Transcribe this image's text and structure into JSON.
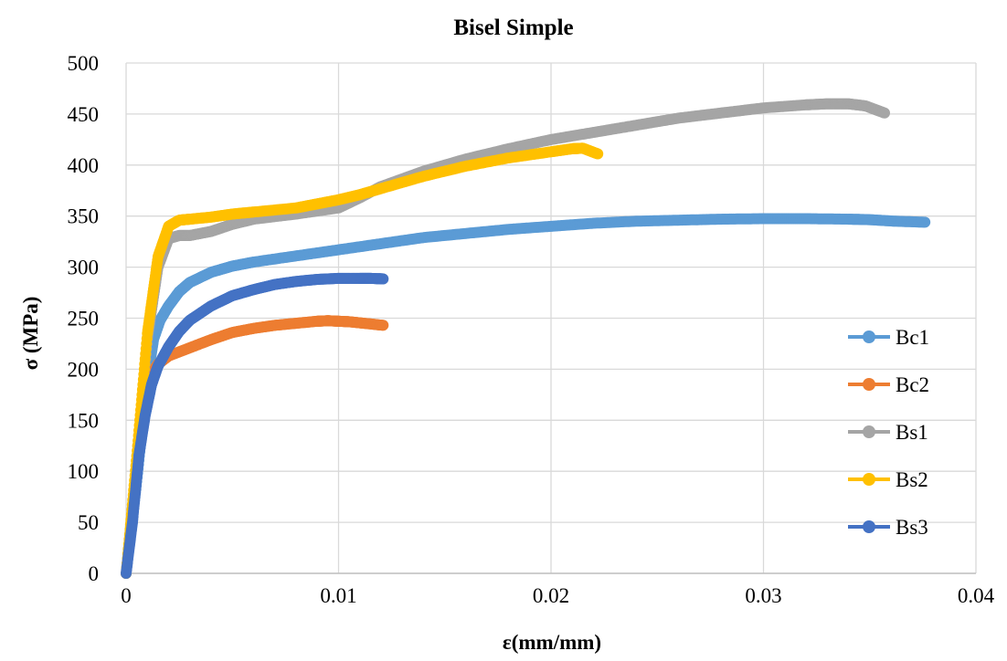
{
  "chart_data": {
    "type": "scatter",
    "title": "Bisel Simple",
    "xlabel": "ε(mm/mm)",
    "ylabel": "σ (MPa)",
    "xlim": [
      0,
      0.04
    ],
    "ylim": [
      0,
      500
    ],
    "x_ticks": [
      0,
      0.01,
      0.02,
      0.03,
      0.04
    ],
    "x_tick_labels": [
      "0",
      "0.01",
      "0.02",
      "0.03",
      "0.04"
    ],
    "y_ticks": [
      0,
      50,
      100,
      150,
      200,
      250,
      300,
      350,
      400,
      450,
      500
    ],
    "y_tick_labels": [
      "0",
      "50",
      "100",
      "150",
      "200",
      "250",
      "300",
      "350",
      "400",
      "450",
      "500"
    ],
    "grid": true,
    "legend_position": "right",
    "series": [
      {
        "name": "Bc1",
        "color": "#5B9BD5",
        "points": [
          [
            0,
            0
          ],
          [
            0.0005,
            90
          ],
          [
            0.001,
            190
          ],
          [
            0.0013,
            230
          ],
          [
            0.0016,
            248
          ],
          [
            0.002,
            262
          ],
          [
            0.0025,
            276
          ],
          [
            0.003,
            285
          ],
          [
            0.004,
            295
          ],
          [
            0.005,
            301
          ],
          [
            0.006,
            305
          ],
          [
            0.008,
            311
          ],
          [
            0.01,
            317
          ],
          [
            0.012,
            323
          ],
          [
            0.014,
            329
          ],
          [
            0.016,
            333
          ],
          [
            0.018,
            337
          ],
          [
            0.02,
            340
          ],
          [
            0.022,
            343
          ],
          [
            0.024,
            345
          ],
          [
            0.026,
            346
          ],
          [
            0.028,
            347
          ],
          [
            0.03,
            347.5
          ],
          [
            0.032,
            347.5
          ],
          [
            0.034,
            347
          ],
          [
            0.035,
            346.5
          ],
          [
            0.0362,
            345
          ],
          [
            0.0376,
            344
          ]
        ]
      },
      {
        "name": "Bc2",
        "color": "#ED7D31",
        "points": [
          [
            0,
            0
          ],
          [
            0.0004,
            80
          ],
          [
            0.0008,
            160
          ],
          [
            0.001,
            190
          ],
          [
            0.0015,
            205
          ],
          [
            0.002,
            213
          ],
          [
            0.003,
            221
          ],
          [
            0.004,
            229
          ],
          [
            0.005,
            236
          ],
          [
            0.006,
            240
          ],
          [
            0.007,
            243
          ],
          [
            0.008,
            245
          ],
          [
            0.009,
            247
          ],
          [
            0.0095,
            247.5
          ],
          [
            0.01,
            247
          ],
          [
            0.0105,
            246.5
          ],
          [
            0.0112,
            245
          ],
          [
            0.0121,
            243
          ]
        ]
      },
      {
        "name": "Bs1",
        "color": "#A5A5A5",
        "points": [
          [
            0,
            0
          ],
          [
            0.0005,
            110
          ],
          [
            0.001,
            230
          ],
          [
            0.0015,
            300
          ],
          [
            0.002,
            328
          ],
          [
            0.0025,
            331
          ],
          [
            0.003,
            331
          ],
          [
            0.004,
            335
          ],
          [
            0.005,
            342
          ],
          [
            0.006,
            347
          ],
          [
            0.008,
            352
          ],
          [
            0.01,
            358
          ],
          [
            0.011,
            368
          ],
          [
            0.012,
            379
          ],
          [
            0.014,
            394
          ],
          [
            0.016,
            406
          ],
          [
            0.018,
            416
          ],
          [
            0.02,
            425
          ],
          [
            0.022,
            432
          ],
          [
            0.024,
            439
          ],
          [
            0.026,
            446
          ],
          [
            0.028,
            451
          ],
          [
            0.03,
            456
          ],
          [
            0.032,
            459
          ],
          [
            0.033,
            460
          ],
          [
            0.034,
            460
          ],
          [
            0.0348,
            458
          ],
          [
            0.0357,
            451
          ]
        ]
      },
      {
        "name": "Bs2",
        "color": "#FFC000",
        "points": [
          [
            0,
            0
          ],
          [
            0.0005,
            115
          ],
          [
            0.001,
            235
          ],
          [
            0.0015,
            310
          ],
          [
            0.002,
            340
          ],
          [
            0.0025,
            346
          ],
          [
            0.003,
            347
          ],
          [
            0.004,
            349
          ],
          [
            0.005,
            352
          ],
          [
            0.006,
            354
          ],
          [
            0.008,
            358
          ],
          [
            0.009,
            362
          ],
          [
            0.01,
            366
          ],
          [
            0.011,
            371
          ],
          [
            0.012,
            377
          ],
          [
            0.014,
            389
          ],
          [
            0.016,
            399
          ],
          [
            0.018,
            407
          ],
          [
            0.02,
            413
          ],
          [
            0.021,
            416
          ],
          [
            0.0215,
            416.5
          ],
          [
            0.0222,
            411
          ]
        ]
      },
      {
        "name": "Bs3",
        "color": "#4472C4",
        "points": [
          [
            0,
            0
          ],
          [
            0.0003,
            50
          ],
          [
            0.0006,
            115
          ],
          [
            0.0009,
            155
          ],
          [
            0.0012,
            185
          ],
          [
            0.0015,
            203
          ],
          [
            0.002,
            222
          ],
          [
            0.0025,
            237
          ],
          [
            0.003,
            248
          ],
          [
            0.004,
            262
          ],
          [
            0.005,
            272
          ],
          [
            0.006,
            278
          ],
          [
            0.007,
            283
          ],
          [
            0.008,
            286
          ],
          [
            0.009,
            288
          ],
          [
            0.01,
            289
          ],
          [
            0.011,
            289
          ],
          [
            0.0115,
            289
          ],
          [
            0.0121,
            288.5
          ]
        ]
      }
    ]
  }
}
